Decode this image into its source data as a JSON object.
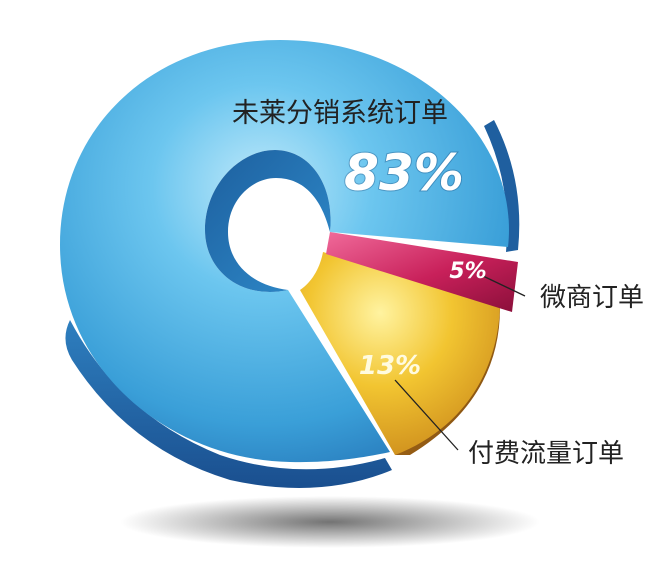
{
  "chart_data": {
    "type": "pie",
    "style": "3d-donut",
    "slices": [
      {
        "label": "未莱分销系统订单",
        "value": 83,
        "value_label": "83%",
        "color": "#4fb3e6"
      },
      {
        "label": "付费流量订单",
        "value": 13,
        "value_label": "13%",
        "color": "#e8b322"
      },
      {
        "label": "微商订单",
        "value": 5,
        "value_label": "5%",
        "color": "#c8205a"
      }
    ]
  }
}
